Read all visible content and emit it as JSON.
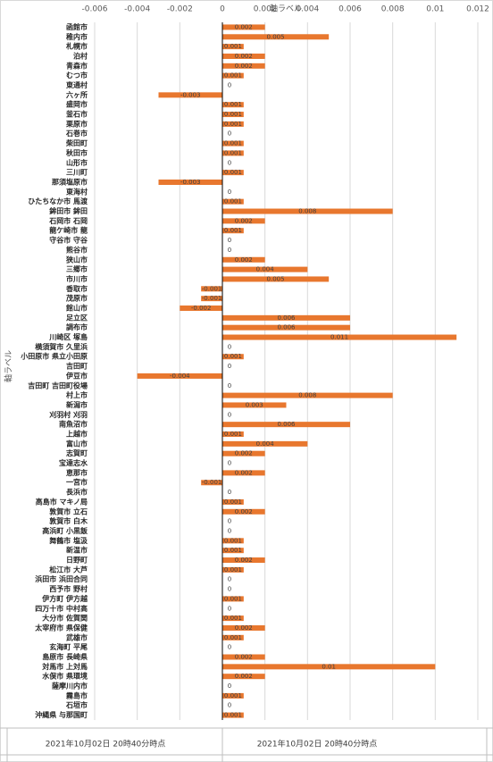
{
  "chart_data": {
    "type": "hbar",
    "x_label": "軸ラベル",
    "y_label": "軸ラベル",
    "categories": [
      "函館市",
      "稚内市",
      "札幌市",
      "泊村",
      "青森市",
      "むつ市",
      "東通村",
      "六ヶ所",
      "盛岡市",
      "釜石市",
      "栗原市",
      "石巻市",
      "柴田町",
      "秋田市",
      "山形市",
      "三川町",
      "那須塩原市",
      "東海村",
      "ひたちなか市 馬渡",
      "鉾田市 鉾田",
      "石岡市 石岡",
      "龍ケ崎市 龍",
      "守谷市 守谷",
      "熊谷市",
      "狭山市",
      "三郷市",
      "市川市",
      "香取市",
      "茂原市",
      "館山市",
      "足立区",
      "調布市",
      "川崎区 塚島",
      "横須賀市 久里浜",
      "小田原市 県立小田原",
      "吉田町",
      "伊豆市",
      "吉田町 吉田町役場",
      "村上市",
      "新潟市",
      "刈羽村 刈羽",
      "南魚沼市",
      "上越市",
      "富山市",
      "志賀町",
      "宝達志水",
      "恵那市",
      "一宮市",
      "長浜市",
      "高島市 マキノ局",
      "敦賀市 立石",
      "敦賀市 白木",
      "高浜町 小黒飯",
      "舞鶴市 塩汲",
      "新温市",
      "日野町",
      "松江市 大芦",
      "浜田市 浜田合同",
      "西予市 野村",
      "伊方町 伊方越",
      "四万十市 中村高",
      "大分市 佐賀関",
      "太宰府市 県保健",
      "武雄市",
      "玄海町 平尾",
      "島原市 長崎県",
      "対馬市 上対馬",
      "水俣市 県環境",
      "薩摩川内市",
      "霧島市",
      "石垣市",
      "沖縄県 与那国町"
    ],
    "values": [
      0.002,
      0.005,
      0.001,
      0.002,
      0.002,
      0.001,
      0,
      -0.003,
      0.001,
      0.001,
      0.001,
      0,
      0.001,
      0.001,
      0,
      0.001,
      -0.003,
      0,
      0.001,
      0.008,
      0.002,
      0.001,
      0,
      0,
      0.002,
      0.004,
      0.005,
      -0.001,
      -0.001,
      -0.002,
      0.006,
      0.006,
      0.011,
      0,
      0.001,
      0,
      -0.004,
      0,
      0.008,
      0.003,
      0,
      0.006,
      0.001,
      0.004,
      0.002,
      0,
      0.002,
      -0.001,
      0,
      0.001,
      0.002,
      0,
      0,
      0.001,
      0.001,
      0.002,
      0.001,
      0,
      0,
      0.001,
      0,
      0.001,
      0.002,
      0.001,
      0,
      0.002,
      0.01,
      0.002,
      0,
      0.001,
      0,
      0.001
    ],
    "color": "#e8772e",
    "xlim": [
      -0.006,
      0.012
    ],
    "xticks": [
      -0.006,
      -0.004,
      -0.002,
      0,
      0.002,
      0.004,
      0.006,
      0.008,
      0.01,
      0.012
    ],
    "grid": true,
    "footer": [
      "2021年10月02日 20時40分時点",
      "2021年10月02日 20時40分時点"
    ]
  }
}
